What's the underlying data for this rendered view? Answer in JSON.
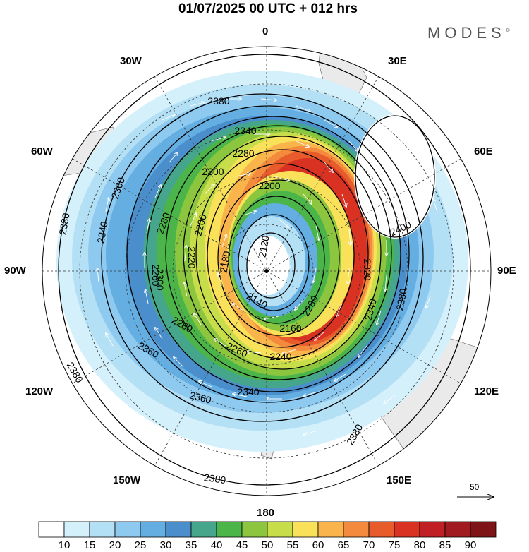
{
  "title": "01/07/2025  00 UTC  + 012 hrs",
  "logo": "MODES",
  "logo_mark": "©",
  "projection": "polar-stereographic",
  "hemisphere": "south",
  "longitude_labels": {
    "lon_0": "0",
    "lon_30e": "30E",
    "lon_60e": "60E",
    "lon_90e": "90E",
    "lon_120e": "120E",
    "lon_150e": "150E",
    "lon_180": "180",
    "lon_150w": "150W",
    "lon_120w": "120W",
    "lon_90w": "90W",
    "lon_60w": "60W",
    "lon_30w": "30W"
  },
  "contour_labels": [
    {
      "id": "c1",
      "text": "2380"
    },
    {
      "id": "c2",
      "text": "2340"
    },
    {
      "id": "c3",
      "text": "2280"
    },
    {
      "id": "c4",
      "text": "2300"
    },
    {
      "id": "c5",
      "text": "2200"
    },
    {
      "id": "c6",
      "text": "2360"
    },
    {
      "id": "c7",
      "text": "2380"
    },
    {
      "id": "c8",
      "text": "2340"
    },
    {
      "id": "c9",
      "text": "2280"
    },
    {
      "id": "c10",
      "text": "2200"
    },
    {
      "id": "c11",
      "text": "2120"
    },
    {
      "id": "c12",
      "text": "2180"
    },
    {
      "id": "c13",
      "text": "2220"
    },
    {
      "id": "c14",
      "text": "2260"
    },
    {
      "id": "c15",
      "text": "2400"
    },
    {
      "id": "c16",
      "text": "2380"
    },
    {
      "id": "c17",
      "text": "2340"
    },
    {
      "id": "c18",
      "text": "2320"
    },
    {
      "id": "c19",
      "text": "2280"
    },
    {
      "id": "c20",
      "text": "2140"
    },
    {
      "id": "c21",
      "text": "2160"
    },
    {
      "id": "c22",
      "text": "2240"
    },
    {
      "id": "c23",
      "text": "2260"
    },
    {
      "id": "c24",
      "text": "2280"
    },
    {
      "id": "c25",
      "text": "2360"
    },
    {
      "id": "c26",
      "text": "2380"
    },
    {
      "id": "c27",
      "text": "2360"
    },
    {
      "id": "c28",
      "text": "2340"
    },
    {
      "id": "c29",
      "text": "2380"
    },
    {
      "id": "c30",
      "text": "2380"
    },
    {
      "id": "c31",
      "text": "2300"
    }
  ],
  "vector_scale_label": "50",
  "colorbar": {
    "labels": [
      "10",
      "15",
      "20",
      "25",
      "30",
      "35",
      "40",
      "45",
      "50",
      "55",
      "60",
      "65",
      "70",
      "75",
      "80",
      "85",
      "90"
    ],
    "colors": [
      "#ffffff",
      "#d4f0fb",
      "#b4e0f5",
      "#8ec9ef",
      "#64aee2",
      "#4a8fcc",
      "#45a68c",
      "#4cb54a",
      "#8cc63f",
      "#c8dd4a",
      "#f9e25a",
      "#f9b54c",
      "#f38a3d",
      "#e85c2c",
      "#d93223",
      "#c02024",
      "#a01a1f",
      "#7f1418"
    ]
  },
  "map_colors": {
    "land": "#eaeaea",
    "grid": "#333333",
    "contour": "#000000",
    "vector": "#ffffff"
  }
}
